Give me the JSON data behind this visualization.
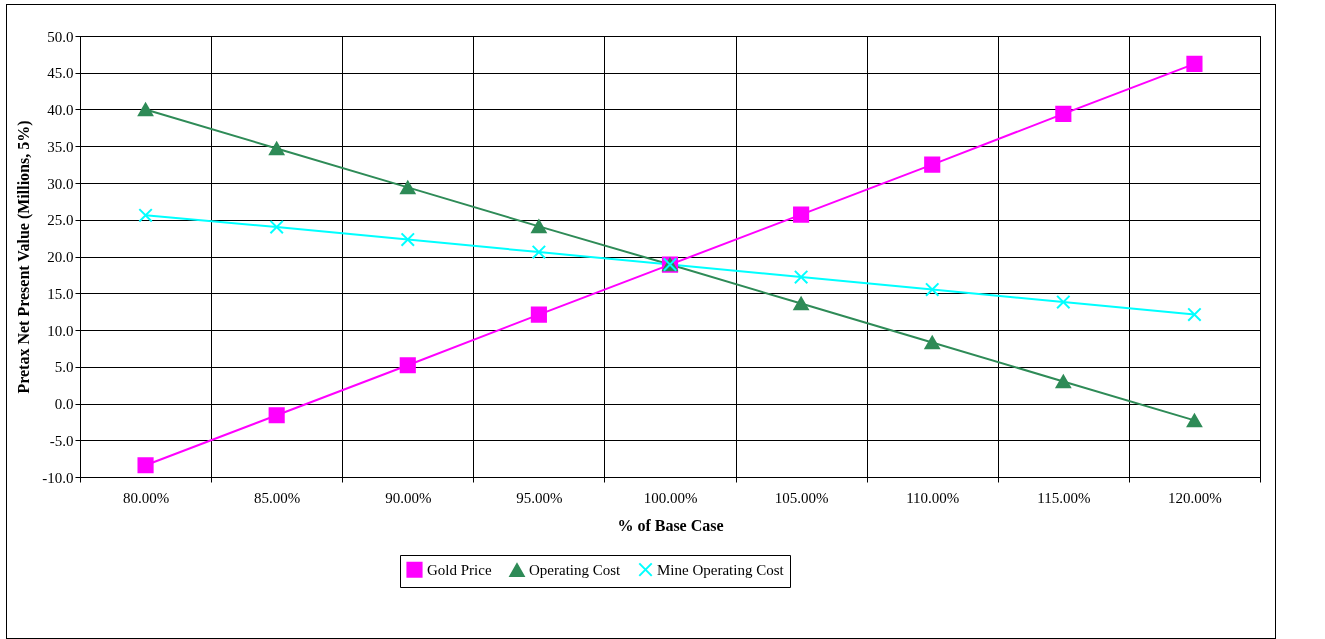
{
  "chart_data": {
    "type": "line",
    "xlabel": "% of Base Case",
    "ylabel": "Pretax Net Present Value (Millions, 5%)",
    "categories": [
      "80.00%",
      "85.00%",
      "90.00%",
      "95.00%",
      "100.00%",
      "105.00%",
      "110.00%",
      "115.00%",
      "120.00%"
    ],
    "series": [
      {
        "name": "Gold Price",
        "color": "#ff00ff",
        "marker": "square",
        "values": [
          -8.4,
          -1.6,
          5.2,
          12.1,
          18.9,
          25.7,
          32.5,
          39.4,
          46.2
        ]
      },
      {
        "name": "Operating Cost",
        "color": "#2e8b57",
        "marker": "triangle",
        "values": [
          40.0,
          34.7,
          29.4,
          24.1,
          18.9,
          13.6,
          8.3,
          3.0,
          -2.3
        ]
      },
      {
        "name": "Mine Operating Cost",
        "color": "#00ffff",
        "marker": "cross",
        "values": [
          25.6,
          24.0,
          22.3,
          20.6,
          18.9,
          17.2,
          15.5,
          13.8,
          12.1
        ]
      }
    ],
    "ylim": [
      -10,
      50
    ],
    "yticks": [
      {
        "value": -10,
        "label": "-10.0"
      },
      {
        "value": -5,
        "label": "-5.0"
      },
      {
        "value": 0,
        "label": "0.0"
      },
      {
        "value": 5,
        "label": "5.0"
      },
      {
        "value": 10,
        "label": "10.0"
      },
      {
        "value": 15,
        "label": "15.0"
      },
      {
        "value": 20,
        "label": "20.0"
      },
      {
        "value": 25,
        "label": "25.0"
      },
      {
        "value": 30,
        "label": "30.0"
      },
      {
        "value": 35,
        "label": "35.0"
      },
      {
        "value": 40,
        "label": "40.0"
      },
      {
        "value": 45,
        "label": "45.0"
      },
      {
        "value": 50,
        "label": "50.0"
      }
    ],
    "grid": true,
    "legend": "bottom"
  }
}
